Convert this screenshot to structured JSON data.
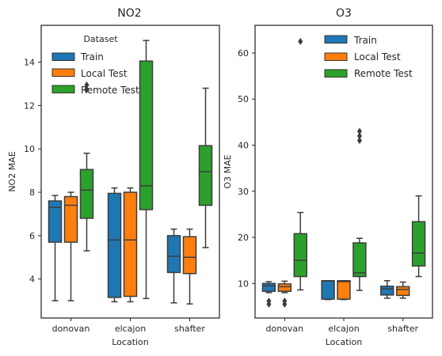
{
  "chart_data": [
    {
      "type": "boxplot",
      "title": "NO2",
      "xlabel": "Location",
      "ylabel": "NO2 MAE",
      "categories": [
        "donovan",
        "elcajon",
        "shafter"
      ],
      "ylim": [
        2.2,
        15.7
      ],
      "yticks": [
        4,
        6,
        8,
        10,
        12,
        14
      ],
      "grid": false,
      "legend": {
        "title": "Dataset",
        "placement": "top-left",
        "entries": [
          "Train",
          "Local Test",
          "Remote Test"
        ]
      },
      "series": [
        {
          "name": "Train",
          "color": "#1f77b4",
          "boxes": [
            {
              "whislo": 3.0,
              "q1": 5.7,
              "med": 7.3,
              "q3": 7.6,
              "whishi": 7.85,
              "fliers": []
            },
            {
              "whislo": 2.95,
              "q1": 3.15,
              "med": 5.8,
              "q3": 7.95,
              "whishi": 8.2,
              "fliers": []
            },
            {
              "whislo": 2.9,
              "q1": 4.3,
              "med": 5.05,
              "q3": 6.0,
              "whishi": 6.3,
              "fliers": []
            }
          ]
        },
        {
          "name": "Local Test",
          "color": "#ff7f0e",
          "boxes": [
            {
              "whislo": 3.0,
              "q1": 5.7,
              "med": 7.4,
              "q3": 7.8,
              "whishi": 8.0,
              "fliers": []
            },
            {
              "whislo": 2.95,
              "q1": 3.2,
              "med": 5.8,
              "q3": 8.0,
              "whishi": 8.2,
              "fliers": []
            },
            {
              "whislo": 2.85,
              "q1": 4.25,
              "med": 5.0,
              "q3": 5.95,
              "whishi": 6.3,
              "fliers": []
            }
          ]
        },
        {
          "name": "Remote Test",
          "color": "#2ca02c",
          "boxes": [
            {
              "whislo": 5.3,
              "q1": 6.8,
              "med": 8.1,
              "q3": 9.05,
              "whishi": 9.8,
              "fliers": [
                12.75,
                12.95
              ]
            },
            {
              "whislo": 3.1,
              "q1": 7.2,
              "med": 8.3,
              "q3": 14.05,
              "whishi": 15.0,
              "fliers": []
            },
            {
              "whislo": 5.45,
              "q1": 7.4,
              "med": 8.95,
              "q3": 10.15,
              "whishi": 12.8,
              "fliers": []
            }
          ]
        }
      ]
    },
    {
      "type": "boxplot",
      "title": "O3",
      "xlabel": "Location",
      "ylabel": "O3 MAE",
      "categories": [
        "donovan",
        "elcajon",
        "shafter"
      ],
      "ylim": [
        2.5,
        66
      ],
      "yticks": [
        10,
        20,
        30,
        40,
        50,
        60
      ],
      "grid": false,
      "legend": {
        "title": "",
        "placement": "top-right",
        "entries": [
          "Train",
          "Local Test",
          "Remote Test"
        ]
      },
      "series": [
        {
          "name": "Train",
          "color": "#1f77b4",
          "boxes": [
            {
              "whislo": 8.0,
              "q1": 8.3,
              "med": 9.5,
              "q3": 10.0,
              "whishi": 10.4,
              "fliers": [
                5.5,
                6.2
              ]
            },
            {
              "whislo": 6.5,
              "q1": 6.6,
              "med": 10.5,
              "q3": 10.6,
              "whishi": 10.6,
              "fliers": []
            },
            {
              "whislo": 6.8,
              "q1": 7.5,
              "med": 8.8,
              "q3": 9.4,
              "whishi": 10.6,
              "fliers": []
            }
          ]
        },
        {
          "name": "Local Test",
          "color": "#ff7f0e",
          "boxes": [
            {
              "whislo": 8.0,
              "q1": 8.3,
              "med": 9.3,
              "q3": 9.9,
              "whishi": 10.5,
              "fliers": [
                5.5,
                6.2
              ]
            },
            {
              "whislo": 6.5,
              "q1": 6.6,
              "med": 10.4,
              "q3": 10.6,
              "whishi": 10.6,
              "fliers": []
            },
            {
              "whislo": 6.8,
              "q1": 7.4,
              "med": 8.7,
              "q3": 9.3,
              "whishi": 10.3,
              "fliers": []
            }
          ]
        },
        {
          "name": "Remote Test",
          "color": "#2ca02c",
          "boxes": [
            {
              "whislo": 8.6,
              "q1": 11.5,
              "med": 15.0,
              "q3": 20.8,
              "whishi": 25.4,
              "fliers": [
                62.5
              ]
            },
            {
              "whislo": 8.5,
              "q1": 11.5,
              "med": 12.3,
              "q3": 18.8,
              "whishi": 19.8,
              "fliers": [
                41.0,
                42.0,
                43.0
              ]
            },
            {
              "whislo": 11.5,
              "q1": 13.8,
              "med": 16.6,
              "q3": 23.4,
              "whishi": 29.0,
              "fliers": []
            }
          ]
        }
      ]
    }
  ]
}
